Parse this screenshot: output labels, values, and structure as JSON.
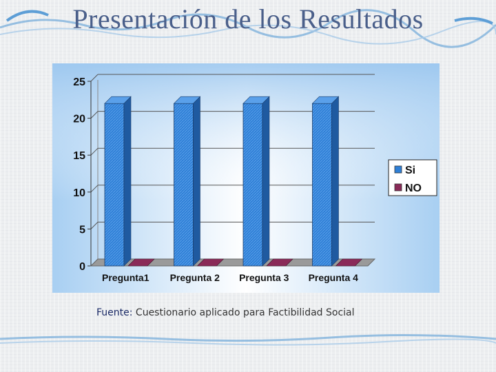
{
  "slide": {
    "title": "Presentación de los Resultados",
    "source_label": "Fuente:",
    "source_text": "Cuestionario aplicado para Factibilidad Social"
  },
  "colors": {
    "title": "#4a5f8a",
    "series_si": "#2f7fd6",
    "series_no": "#8a2a58",
    "plot_bg_top": "#a8cff2",
    "plot_bg_mid": "#ffffff"
  },
  "chart_data": {
    "type": "bar",
    "title": "",
    "xlabel": "",
    "ylabel": "",
    "categories": [
      "Pregunta1",
      "Pregunta 2",
      "Pregunta 3",
      "Pregunta 4"
    ],
    "series": [
      {
        "name": "Si",
        "values": [
          22,
          22,
          22,
          22
        ]
      },
      {
        "name": "NO",
        "values": [
          0,
          0,
          0,
          0
        ]
      }
    ],
    "ylim": [
      0,
      25
    ],
    "yticks": [
      0,
      5,
      10,
      15,
      20,
      25
    ],
    "grid": true,
    "legend_position": "right",
    "three_d": true
  }
}
